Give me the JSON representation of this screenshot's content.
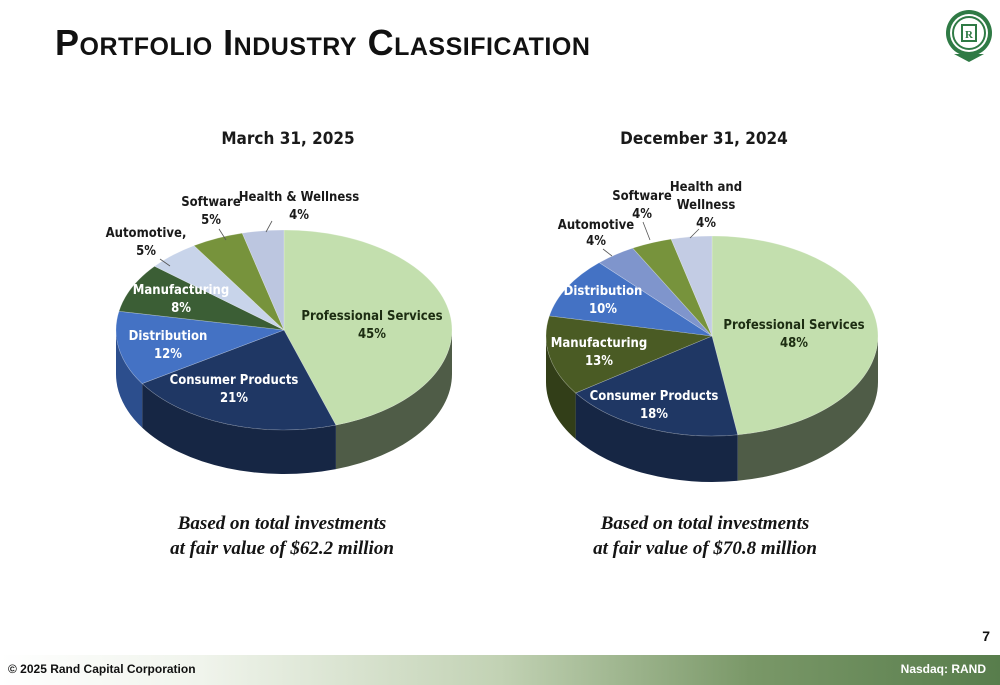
{
  "title": "Portfolio Industry Classification",
  "logo_text": "RAND CAPITAL",
  "page_number": "7",
  "footer": {
    "copyright": "© 2025 Rand Capital Corporation",
    "ticker": "Nasdaq:  RAND"
  },
  "captions": [
    {
      "line1": "Based on total investments",
      "line2": "at fair value of $62.2 million"
    },
    {
      "line1": "Based on total investments",
      "line2": "at fair value of $70.8 million"
    }
  ],
  "chart_data": [
    {
      "type": "pie",
      "title": "March 31, 2025",
      "slices": [
        {
          "label": "Professional Services",
          "value": 45,
          "pct": "45%",
          "color": "#c3dfae",
          "side": "#4f5c47"
        },
        {
          "label": "Consumer Products",
          "value": 21,
          "pct": "21%",
          "color": "#1f3764",
          "side": "#162644"
        },
        {
          "label": "Distribution",
          "value": 12,
          "pct": "12%",
          "color": "#4472c4",
          "side": "#2c4e8d"
        },
        {
          "label": "Manufacturing",
          "value": 8,
          "pct": "8%",
          "color": "#3b5e35",
          "side": "#263d22"
        },
        {
          "label": "Automotive,",
          "value": 5,
          "pct": "5%",
          "color": "#c8d4ea",
          "side": "#8996ad"
        },
        {
          "label": "Software",
          "value": 5,
          "pct": "5%",
          "color": "#77933c",
          "side": "#4f6328"
        },
        {
          "label": "Health & Wellness",
          "value": 4,
          "pct": "4%",
          "color": "#bcc6e0",
          "side": "#8590ab"
        }
      ]
    },
    {
      "type": "pie",
      "title": "December 31, 2024",
      "slices": [
        {
          "label": "Professional Services",
          "value": 48,
          "pct": "48%",
          "color": "#c3dfae",
          "side": "#4f5c47"
        },
        {
          "label": "Consumer Products",
          "value": 18,
          "pct": "18%",
          "color": "#1f3764",
          "side": "#162644"
        },
        {
          "label": "Manufacturing",
          "value": 13,
          "pct": "13%",
          "color": "#4a5b24",
          "side": "#323e18"
        },
        {
          "label": "Distribution",
          "value": 10,
          "pct": "10%",
          "color": "#4472c4",
          "side": "#2c4e8d"
        },
        {
          "label": "Automotive",
          "value": 4,
          "pct": "4%",
          "color": "#7f95cc",
          "side": "#56699a"
        },
        {
          "label": "Software",
          "value": 4,
          "pct": "4%",
          "color": "#77933c",
          "side": "#4f6328"
        },
        {
          "label": "Health and Wellness",
          "value": 4,
          "pct": "4%",
          "color": "#c3cce4",
          "side": "#8790ab"
        }
      ]
    }
  ]
}
